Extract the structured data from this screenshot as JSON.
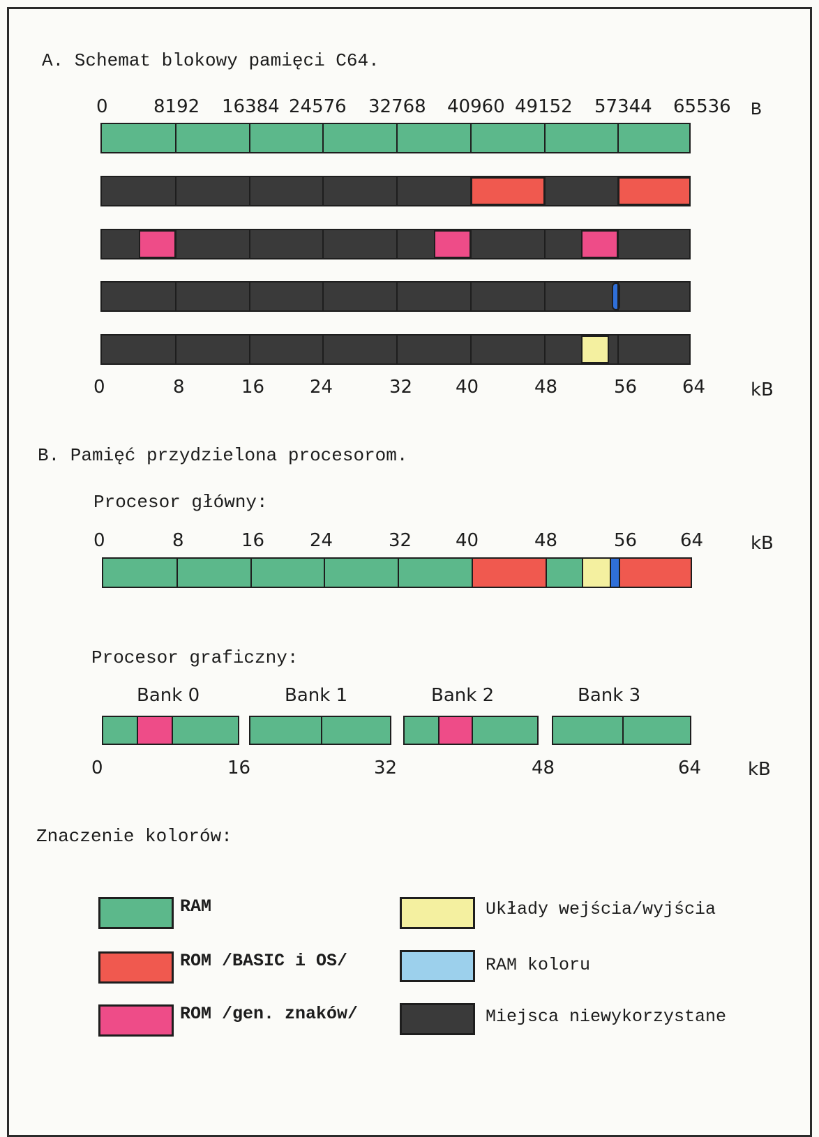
{
  "colors": {
    "ram": "#5cb88b",
    "rom_basic_os": "#f0594f",
    "rom_char_gen": "#ee4c88",
    "io": "#f4f0a0",
    "color_ram": "#2f6fd8",
    "unused": "#3a3a3a",
    "legend_color_ram": "#9cd0ec"
  },
  "sectionA": {
    "title": "A. Schemat blokowy pamięci C64.",
    "top_ticks": [
      "0",
      "8192",
      "16384",
      "24576",
      "32768",
      "40960",
      "49152",
      "57344",
      "65536"
    ],
    "top_unit": "B",
    "bottom_ticks": [
      "0",
      "8",
      "16",
      "24",
      "32",
      "40",
      "48",
      "56",
      "64"
    ],
    "bottom_unit": "kB",
    "rows": [
      {
        "type": "ram",
        "blocks": [
          [
            0,
            64
          ]
        ]
      },
      {
        "type": "rom_basic_os",
        "blocks": [
          [
            40,
            48
          ],
          [
            56,
            64
          ]
        ]
      },
      {
        "type": "rom_char_gen",
        "blocks": [
          [
            4,
            8
          ],
          [
            36,
            40
          ],
          [
            52,
            56
          ]
        ]
      },
      {
        "type": "color_ram",
        "blocks": [
          [
            55,
            56
          ]
        ]
      },
      {
        "type": "io",
        "blocks": [
          [
            52,
            55
          ]
        ]
      }
    ]
  },
  "sectionB": {
    "title": "B. Pamięć przydzielona procesorom.",
    "main_cpu": {
      "label": "Procesor główny:",
      "ticks": [
        "0",
        "8",
        "16",
        "24",
        "32",
        "40",
        "48",
        "56",
        "64"
      ],
      "unit": "kB",
      "segments": [
        {
          "type": "ram",
          "from": 0,
          "to": 40
        },
        {
          "type": "rom_basic_os",
          "from": 40,
          "to": 48
        },
        {
          "type": "ram",
          "from": 48,
          "to": 52
        },
        {
          "type": "io",
          "from": 52,
          "to": 55
        },
        {
          "type": "color_ram",
          "from": 55,
          "to": 56
        },
        {
          "type": "rom_basic_os",
          "from": 56,
          "to": 64
        }
      ]
    },
    "gpu": {
      "label": "Procesor graficzny:",
      "banks": [
        {
          "label": "Bank 0",
          "segments": [
            {
              "type": "ram",
              "from": 0,
              "to": 4
            },
            {
              "type": "rom_char_gen",
              "from": 4,
              "to": 8
            },
            {
              "type": "ram",
              "from": 8,
              "to": 16
            }
          ]
        },
        {
          "label": "Bank 1",
          "segments": [
            {
              "type": "ram",
              "from": 16,
              "to": 24
            },
            {
              "type": "ram",
              "from": 24,
              "to": 32
            }
          ]
        },
        {
          "label": "Bank 2",
          "segments": [
            {
              "type": "ram",
              "from": 32,
              "to": 36
            },
            {
              "type": "rom_char_gen",
              "from": 36,
              "to": 40
            },
            {
              "type": "ram",
              "from": 40,
              "to": 48
            }
          ]
        },
        {
          "label": "Bank 3",
          "segments": [
            {
              "type": "ram",
              "from": 48,
              "to": 56
            },
            {
              "type": "ram",
              "from": 56,
              "to": 64
            }
          ]
        }
      ],
      "ticks": [
        "0",
        "16",
        "32",
        "48",
        "64"
      ],
      "unit": "kB"
    }
  },
  "legend": {
    "title": "Znaczenie kolorów:",
    "items": [
      {
        "type": "ram",
        "label": "RAM"
      },
      {
        "type": "rom_basic_os",
        "label": "ROM /BASIC i OS/"
      },
      {
        "type": "rom_char_gen",
        "label": "ROM /gen. znaków/"
      },
      {
        "type": "io",
        "label": "Układy wejścia/wyjścia"
      },
      {
        "type": "color_ram",
        "label": "RAM koloru"
      },
      {
        "type": "unused",
        "label": "Miejsca niewykorzystane"
      }
    ]
  }
}
